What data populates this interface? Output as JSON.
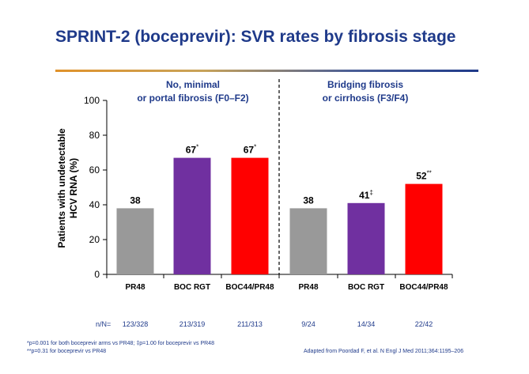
{
  "slide": {
    "title": "SPRINT-2 (boceprevir): SVR rates by fibrosis stage",
    "footnote_1": "*p=0.001 for both boceprevir arms vs PR48; ‡p=1.00 for boceprevir vs PR48",
    "footnote_2": "**p=0.31 for boceprevir vs PR48",
    "source": "Adapted from Poordad F, et al. N Engl J Med 2011;364:1195–206"
  },
  "chart_data": {
    "type": "bar",
    "ylabel": "Patients with undetectable HCV RNA (%)",
    "ylim": [
      0,
      100
    ],
    "yticks": [
      0,
      20,
      40,
      60,
      80,
      100
    ],
    "groups": [
      {
        "label_line1": "No, minimal",
        "label_line2": "or portal fibrosis (F0–F2)"
      },
      {
        "label_line1": "Bridging fibrosis",
        "label_line2": "or cirrhosis (F3/F4)"
      }
    ],
    "categories": [
      "PR48",
      "BOC RGT",
      "BOC44/PR48",
      "PR48",
      "BOC RGT",
      "BOC44/PR48"
    ],
    "values": [
      38,
      67,
      67,
      38,
      41,
      52
    ],
    "value_labels": [
      "38",
      "67",
      "67",
      "38",
      "41",
      "52"
    ],
    "markers": [
      "",
      "*",
      "*",
      "",
      "‡",
      "**"
    ],
    "colors": [
      "#999999",
      "#7030a0",
      "#ff0000",
      "#999999",
      "#7030a0",
      "#ff0000"
    ],
    "n_prefix": "n/N=",
    "n_labels": [
      "123/328",
      "213/319",
      "211/313",
      "9/24",
      "14/34",
      "22/42"
    ]
  }
}
